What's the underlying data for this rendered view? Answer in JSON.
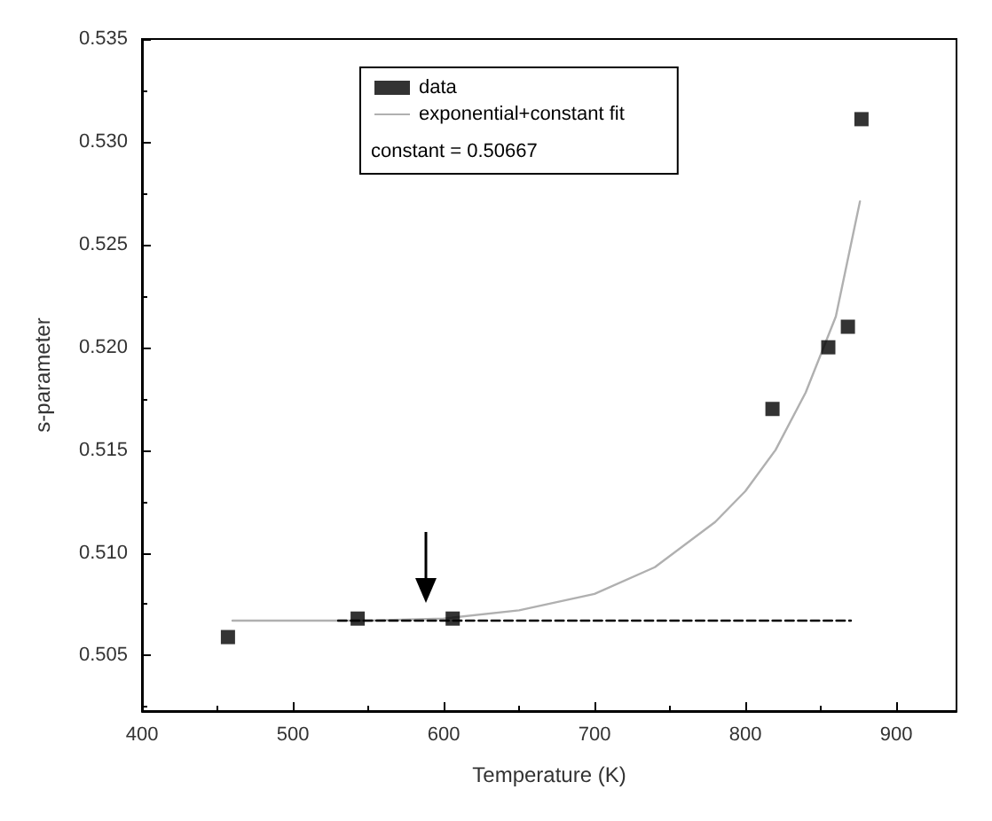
{
  "chart_data": {
    "type": "scatter",
    "xlabel": "Temperature (K)",
    "ylabel": "s-parameter",
    "xlim": [
      400,
      940
    ],
    "xticks": [
      400,
      500,
      600,
      700,
      800,
      900
    ],
    "ylim": [
      0.5023,
      0.535
    ],
    "yticks": [
      0.505,
      {
        "value": 0.51,
        "label": "0.510"
      },
      0.515,
      {
        "value": 0.52,
        "label": "0.520"
      },
      0.525,
      {
        "value": 0.53,
        "label": "0.530"
      },
      0.535
    ],
    "grid": false,
    "legend": "top",
    "annotations": [
      "constant = 0.50667"
    ],
    "series": [
      {
        "name": "data",
        "marker": "square",
        "color": "#000000",
        "x": [
          457,
          543,
          606,
          818,
          855,
          868,
          877
        ],
        "values": [
          0.5059,
          0.5068,
          0.5068,
          0.517,
          0.52,
          0.521,
          0.5311
        ]
      },
      {
        "name": "exponential+constant fit",
        "type": "line",
        "marker": "none",
        "line_style": "solid",
        "color": "#b0b0b0",
        "x": [
          460,
          550,
          600,
          650,
          700,
          740,
          780,
          800,
          820,
          840,
          860,
          876
        ],
        "values": [
          0.5067,
          0.5067,
          0.5068,
          0.5072,
          0.508,
          0.5093,
          0.5115,
          0.513,
          0.515,
          0.5178,
          0.5215,
          0.5271
        ]
      },
      {
        "type": "line",
        "marker": "none",
        "line_style": "dashed",
        "color": "#000000",
        "x": [
          530,
          870
        ],
        "values": [
          0.5067,
          0.5067
        ]
      }
    ]
  }
}
